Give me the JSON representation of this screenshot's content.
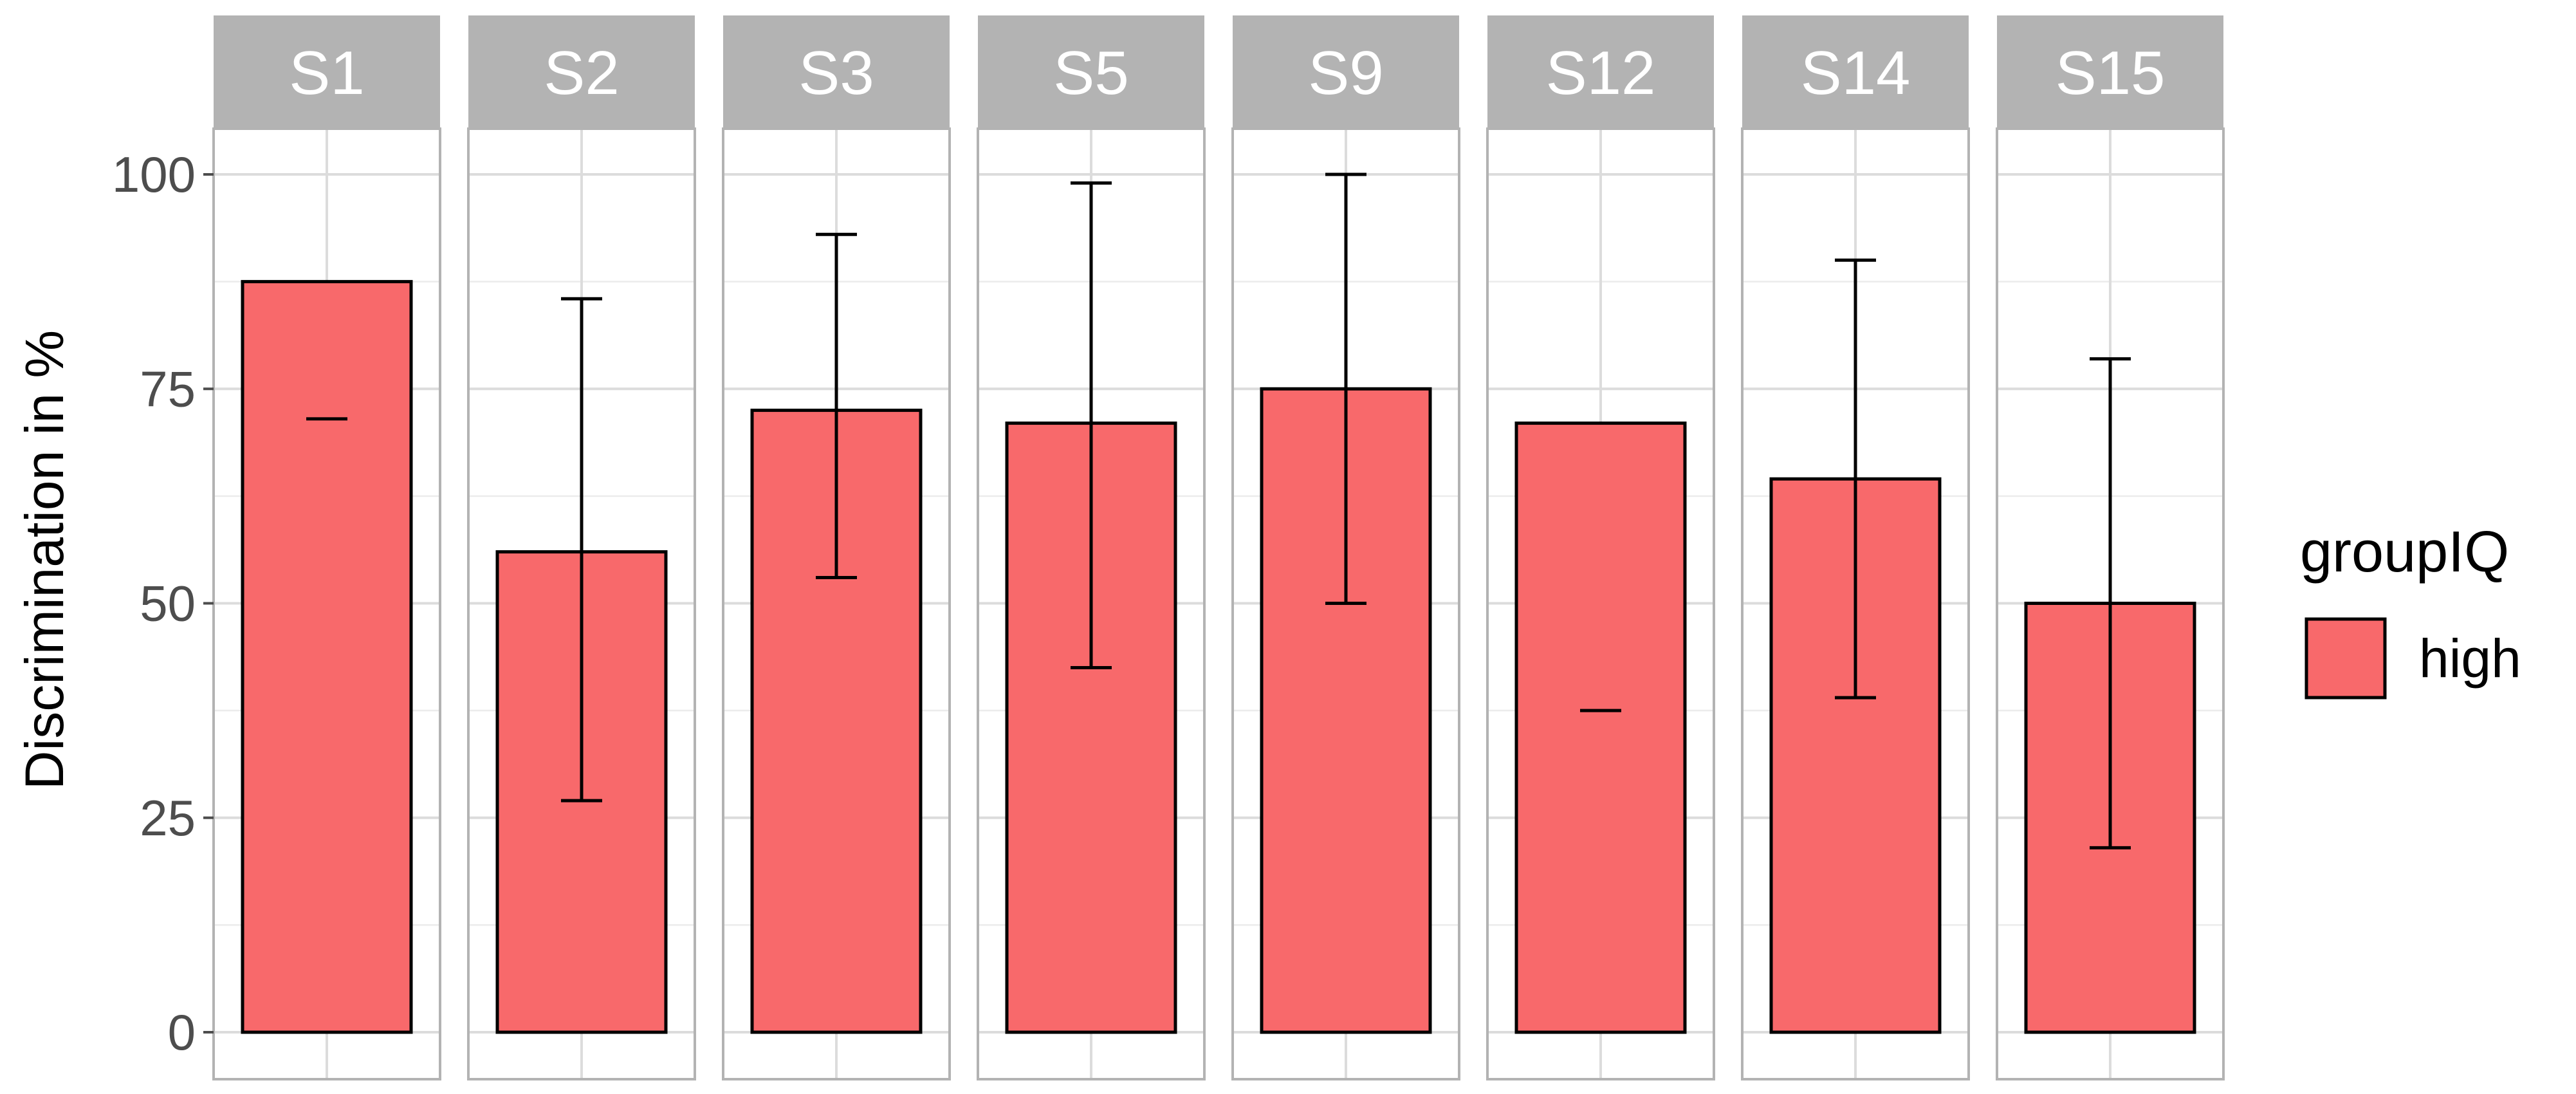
{
  "chart_data": {
    "type": "bar",
    "xlabel": "",
    "ylabel": "Discrimination in %",
    "ylim": [
      0,
      110
    ],
    "y_ticks": [
      0,
      25,
      50,
      75,
      100
    ],
    "grid": true,
    "legend_position": "right",
    "legend_title": "groupIQ",
    "bar_color": "#f8696b",
    "strip_color": "#b3b3b3",
    "panels": [
      "S1",
      "S2",
      "S3",
      "S5",
      "S9",
      "S12",
      "S14",
      "S15"
    ],
    "series": [
      {
        "name": "high",
        "values": [
          87.5,
          56,
          72.5,
          71,
          75,
          71,
          64.5,
          50
        ],
        "error_low": [
          71.5,
          27,
          53,
          42.5,
          50,
          37.5,
          39,
          21.5
        ],
        "error_high": [
          71.5,
          85.5,
          93,
          99,
          100,
          37.5,
          90,
          78.5
        ]
      }
    ]
  }
}
